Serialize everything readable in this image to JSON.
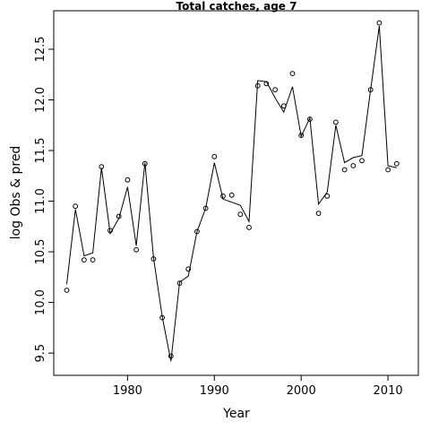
{
  "chart_data": {
    "type": "line",
    "title": "Total catches, age 7",
    "xlabel": "Year",
    "ylabel": "log Obs & pred",
    "xlim": [
      1971.5,
      2013.5
    ],
    "ylim": [
      9.28,
      12.88
    ],
    "xticks": [
      1980,
      1990,
      2000,
      2010
    ],
    "yticks": [
      9.5,
      10.0,
      10.5,
      11.0,
      11.5,
      12.0,
      12.5
    ],
    "ytick_labels": [
      "9.5",
      "10.0",
      "10.5",
      "11.0",
      "11.5",
      "12.0",
      "12.5"
    ],
    "series": [
      {
        "style": "points",
        "x": [
          1973,
          1974,
          1975,
          1976,
          1977,
          1978,
          1979,
          1980,
          1981,
          1982,
          1983,
          1984,
          1985,
          1986,
          1987,
          1988,
          1989,
          1990,
          1991,
          1992,
          1993,
          1994,
          1995,
          1996,
          1997,
          1998,
          1999,
          2000,
          2001,
          2002,
          2003,
          2004,
          2005,
          2006,
          2007,
          2008,
          2009,
          2010,
          2011
        ],
        "y": [
          10.12,
          10.95,
          10.42,
          10.42,
          11.34,
          10.71,
          10.85,
          11.21,
          10.52,
          11.37,
          10.43,
          9.85,
          9.47,
          10.19,
          10.33,
          10.7,
          10.93,
          11.44,
          11.05,
          11.06,
          10.87,
          10.74,
          12.14,
          12.16,
          12.1,
          11.94,
          12.26,
          11.65,
          11.81,
          10.88,
          11.05,
          11.78,
          11.31,
          11.35,
          11.4,
          12.1,
          12.76,
          11.31,
          11.37
        ]
      },
      {
        "style": "line",
        "x": [
          1973,
          1974,
          1975,
          1976,
          1977,
          1978,
          1979,
          1980,
          1981,
          1982,
          1983,
          1984,
          1985,
          1986,
          1987,
          1988,
          1989,
          1990,
          1991,
          1992,
          1993,
          1994,
          1995,
          1996,
          1997,
          1998,
          1999,
          2000,
          2001,
          2002,
          2003,
          2004,
          2005,
          2006,
          2007,
          2008,
          2009,
          2010,
          2011
        ],
        "y": [
          10.18,
          10.92,
          10.46,
          10.49,
          11.33,
          10.68,
          10.83,
          11.14,
          10.56,
          11.38,
          10.44,
          9.86,
          9.42,
          10.2,
          10.26,
          10.7,
          10.93,
          11.38,
          11.02,
          10.99,
          10.96,
          10.8,
          12.19,
          12.18,
          12.02,
          11.88,
          12.13,
          11.64,
          11.82,
          10.97,
          11.09,
          11.75,
          11.38,
          11.43,
          11.45,
          12.1,
          12.73,
          11.35,
          11.33
        ]
      }
    ]
  }
}
